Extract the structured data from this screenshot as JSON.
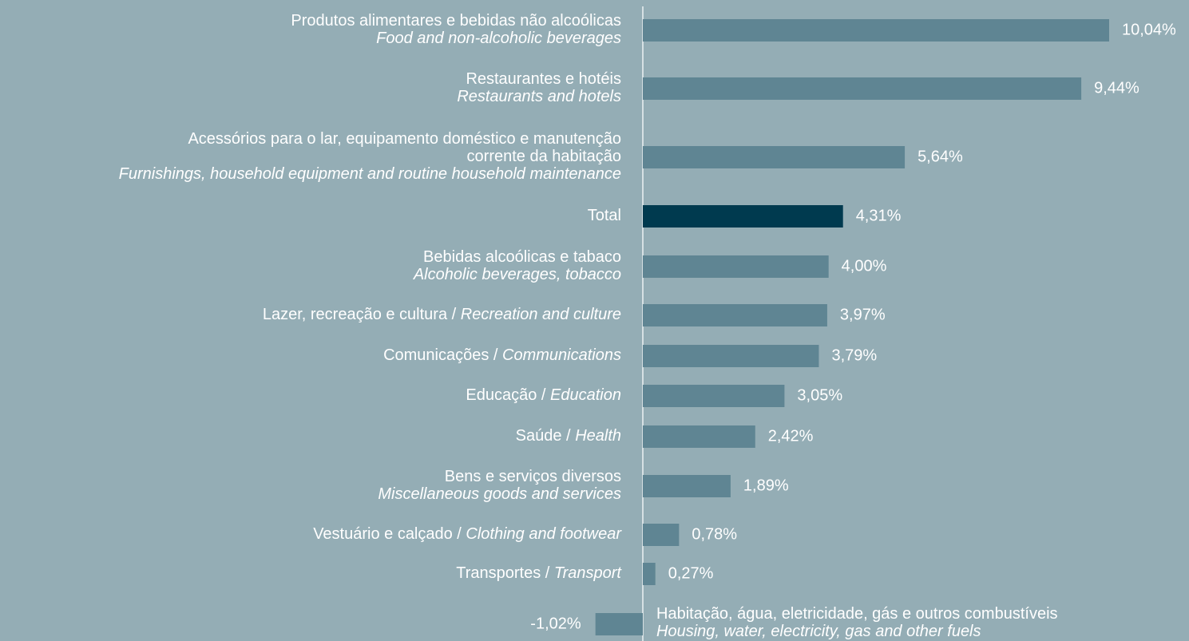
{
  "chart_data": {
    "type": "barh",
    "categories": [
      [
        [
          {
            "text": "Produtos alimentares e bebidas não alcoólicas",
            "italic": false
          }
        ],
        [
          {
            "text": "Food and non-alcoholic beverages",
            "italic": true
          }
        ]
      ],
      [
        [
          {
            "text": "Restaurantes e hotéis",
            "italic": false
          }
        ],
        [
          {
            "text": "Restaurants and hotels",
            "italic": true
          }
        ]
      ],
      [
        [
          {
            "text": "Acessórios para o lar, equipamento doméstico e manutenção",
            "italic": false
          }
        ],
        [
          {
            "text": "corrente da habitação",
            "italic": false
          }
        ],
        [
          {
            "text": "Furnishings, household equipment and routine household maintenance",
            "italic": true
          }
        ]
      ],
      [
        [
          {
            "text": "Total",
            "italic": false
          }
        ]
      ],
      [
        [
          {
            "text": "Bebidas alcoólicas e tabaco",
            "italic": false
          }
        ],
        [
          {
            "text": "Alcoholic beverages, tobacco",
            "italic": true
          }
        ]
      ],
      [
        [
          {
            "text": "Lazer, recreação e cultura / ",
            "italic": false
          },
          {
            "text": "Recreation and culture",
            "italic": true
          }
        ]
      ],
      [
        [
          {
            "text": "Comunicações / ",
            "italic": false
          },
          {
            "text": "Communications",
            "italic": true
          }
        ]
      ],
      [
        [
          {
            "text": "Educação / ",
            "italic": false
          },
          {
            "text": "Education",
            "italic": true
          }
        ]
      ],
      [
        [
          {
            "text": "Saúde / ",
            "italic": false
          },
          {
            "text": "Health",
            "italic": true
          }
        ]
      ],
      [
        [
          {
            "text": "Bens e serviços diversos",
            "italic": false
          }
        ],
        [
          {
            "text": "Miscellaneous goods and services",
            "italic": true
          }
        ]
      ],
      [
        [
          {
            "text": "Vestuário e calçado / ",
            "italic": false
          },
          {
            "text": "Clothing and footwear",
            "italic": true
          }
        ]
      ],
      [
        [
          {
            "text": "Transportes / ",
            "italic": false
          },
          {
            "text": "Transport",
            "italic": true
          }
        ]
      ],
      [
        [
          {
            "text": "Habitação, água, eletricidade, gás e outros combustíveis",
            "italic": false
          }
        ],
        [
          {
            "text": "Housing, water, electricity, gas and other fuels",
            "italic": true
          }
        ]
      ]
    ],
    "values": [
      10.04,
      9.44,
      5.64,
      4.31,
      4.0,
      3.97,
      3.79,
      3.05,
      2.42,
      1.89,
      0.78,
      0.27,
      -1.02
    ],
    "value_labels": [
      "10,04%",
      "9,44%",
      "5,64%",
      "4,31%",
      "4,00%",
      "3,97%",
      "3,79%",
      "3,05%",
      "2,42%",
      "1,89%",
      "0,78%",
      "0,27%",
      "-1,02%"
    ],
    "colors": [
      "#5f8593",
      "#5f8593",
      "#5f8593",
      "#003a4f",
      "#5f8593",
      "#5f8593",
      "#5f8593",
      "#5f8593",
      "#5f8593",
      "#5f8593",
      "#5f8593",
      "#5f8593",
      "#5f8593"
    ]
  }
}
